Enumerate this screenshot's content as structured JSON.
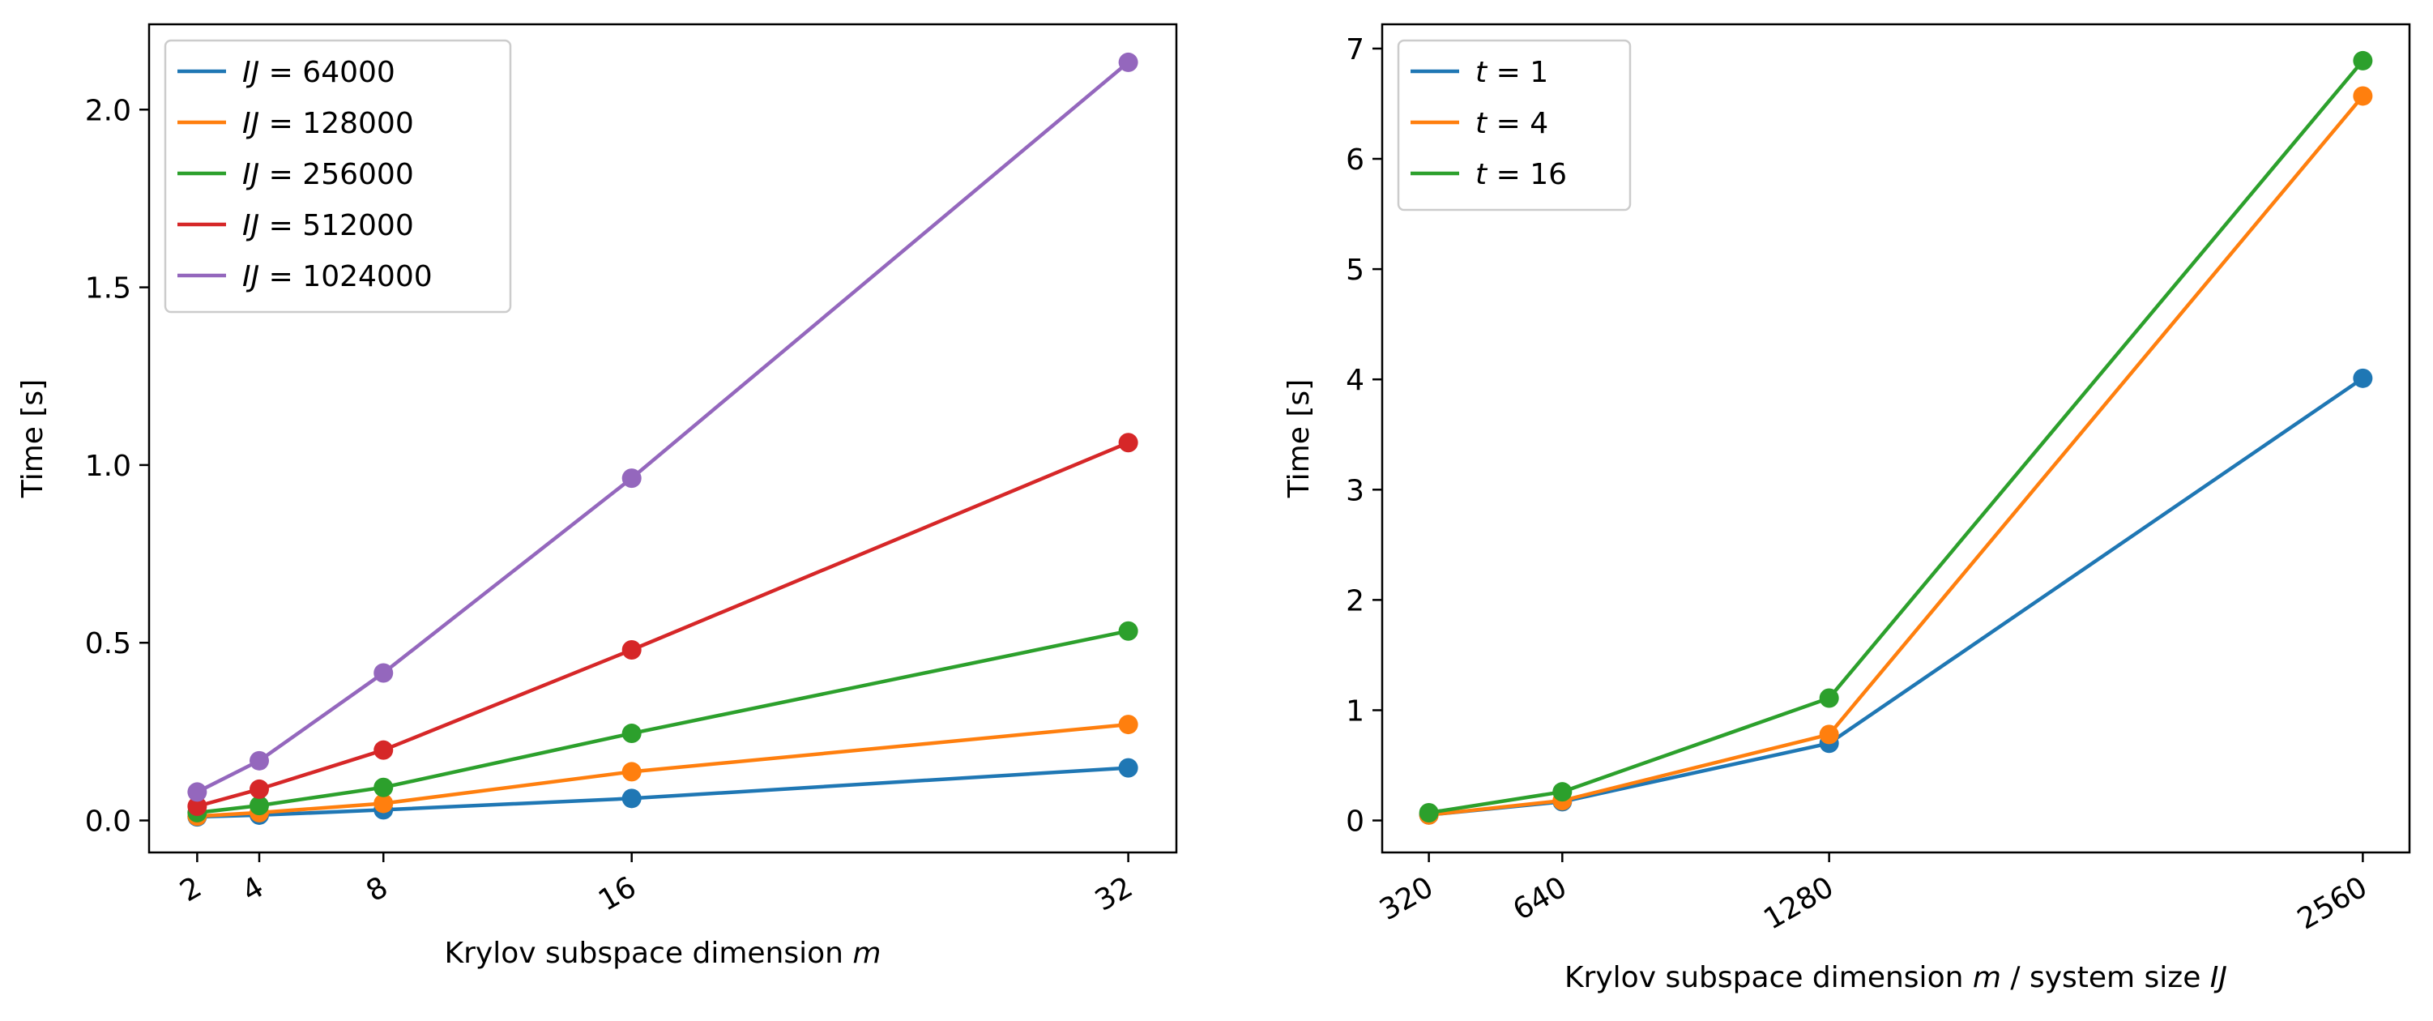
{
  "chart_data": [
    {
      "type": "line",
      "title": "",
      "xlabel": "Krylov subspace dimension ",
      "xlabel_var": "m",
      "ylabel": "Time [s]",
      "x": [
        2,
        4,
        8,
        16,
        32
      ],
      "x_tick_labels": [
        "2",
        "4",
        "8",
        "16",
        "32"
      ],
      "xlim": [
        0.45,
        33.55
      ],
      "ylim": [
        -0.09,
        2.24
      ],
      "y_ticks": [
        0.0,
        0.5,
        1.0,
        1.5,
        2.0
      ],
      "y_tick_labels": [
        "0.0",
        "0.5",
        "1.0",
        "1.5",
        "2.0"
      ],
      "grid": false,
      "legend_position": "upper-left",
      "series": [
        {
          "name": "64000",
          "legend_var": "IJ",
          "color": "#1f77b4",
          "values": [
            0.01,
            0.015,
            0.03,
            0.062,
            0.148
          ]
        },
        {
          "name": "128000",
          "legend_var": "IJ",
          "color": "#ff7f0e",
          "values": [
            0.012,
            0.022,
            0.048,
            0.137,
            0.27
          ]
        },
        {
          "name": "256000",
          "legend_var": "IJ",
          "color": "#2ca02c",
          "values": [
            0.022,
            0.042,
            0.093,
            0.245,
            0.533
          ]
        },
        {
          "name": "512000",
          "legend_var": "IJ",
          "color": "#d62728",
          "values": [
            0.04,
            0.088,
            0.198,
            0.48,
            1.063
          ]
        },
        {
          "name": "1024000",
          "legend_var": "IJ",
          "color": "#9467bd",
          "values": [
            0.08,
            0.168,
            0.415,
            0.963,
            2.133
          ]
        }
      ]
    },
    {
      "type": "line",
      "title": "",
      "xlabel": "Krylov subspace dimension ",
      "xlabel_var": "m",
      "xlabel_mid": " / system size ",
      "xlabel_var2": "IJ",
      "ylabel": "Time [s]",
      "x": [
        320,
        640,
        1280,
        2560
      ],
      "x_tick_labels": [
        "320",
        "640",
        "1280",
        "2560"
      ],
      "xlim": [
        208,
        2672
      ],
      "ylim": [
        -0.29,
        7.22
      ],
      "y_ticks": [
        0,
        1,
        2,
        3,
        4,
        5,
        6,
        7
      ],
      "y_tick_labels": [
        "0",
        "1",
        "2",
        "3",
        "4",
        "5",
        "6",
        "7"
      ],
      "grid": false,
      "legend_position": "upper-left",
      "series": [
        {
          "name": "1",
          "legend_var": "t",
          "color": "#1f77b4",
          "values": [
            0.05,
            0.17,
            0.7,
            4.01
          ]
        },
        {
          "name": "4",
          "legend_var": "t",
          "color": "#ff7f0e",
          "values": [
            0.05,
            0.18,
            0.78,
            6.57
          ]
        },
        {
          "name": "16",
          "legend_var": "t",
          "color": "#2ca02c",
          "values": [
            0.07,
            0.26,
            1.11,
            6.89
          ]
        }
      ]
    }
  ]
}
